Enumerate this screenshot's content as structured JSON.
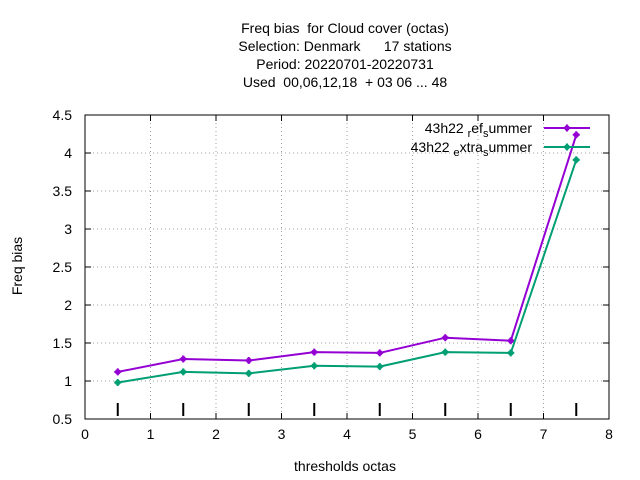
{
  "chart_data": {
    "type": "line",
    "title_lines": [
      "Freq bias  for Cloud cover (octas)",
      "Selection: Denmark      17 stations",
      "Period: 20220701-20220731",
      "Used  00,06,12,18  + 03 06 ... 48"
    ],
    "xlabel": "thresholds octas",
    "ylabel": "Freq bias",
    "xlim": [
      0,
      8
    ],
    "ylim": [
      0.5,
      4.5
    ],
    "xticks": [
      "0",
      "1",
      "2",
      "3",
      "4",
      "5",
      "6",
      "7",
      "8"
    ],
    "yticks": [
      "0.5",
      "1",
      "1.5",
      "2",
      "2.5",
      "3",
      "3.5",
      "4",
      "4.5"
    ],
    "grid": true,
    "legend_position": "top-right",
    "bottom_markers_x": [
      0.5,
      1.5,
      2.5,
      3.5,
      4.5,
      5.5,
      6.5,
      7.5
    ],
    "x": [
      0.5,
      1.5,
      2.5,
      3.5,
      4.5,
      5.5,
      6.5,
      7.5
    ],
    "series": [
      {
        "name_parts": [
          "43h22 ",
          "r",
          "ef",
          "s",
          "ummer"
        ],
        "color": "#9400d3",
        "values": [
          1.12,
          1.29,
          1.27,
          1.38,
          1.37,
          1.57,
          1.53,
          4.24
        ]
      },
      {
        "name_parts": [
          "43h22 ",
          "e",
          "xtra",
          "s",
          "ummer"
        ],
        "color": "#009e73",
        "values": [
          0.98,
          1.12,
          1.1,
          1.2,
          1.19,
          1.38,
          1.37,
          3.91
        ]
      }
    ]
  }
}
